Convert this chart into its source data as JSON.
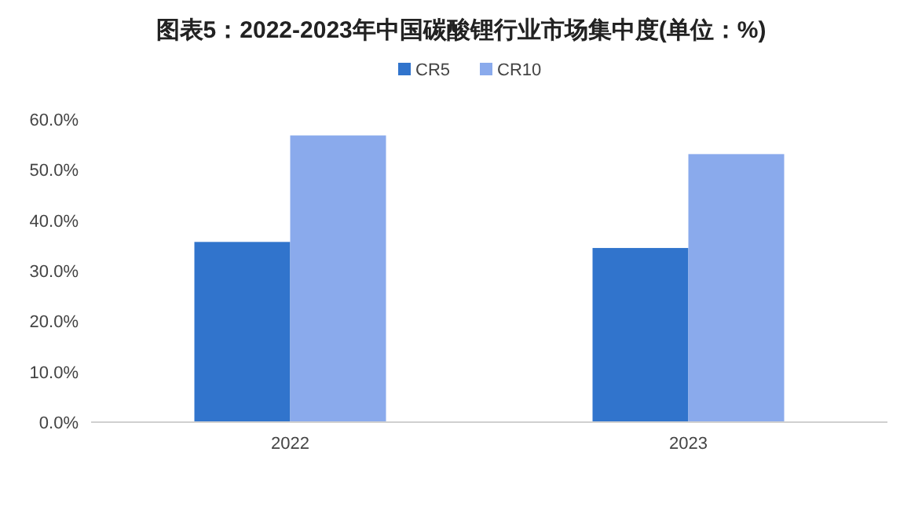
{
  "chart_data": {
    "type": "bar",
    "title": "图表5：2022-2023年中国碳酸锂行业市场集中度(单位：%)",
    "categories": [
      "2022",
      "2023"
    ],
    "series": [
      {
        "name": "CR5",
        "color": "#3174cc",
        "values": [
          35.7,
          34.5
        ]
      },
      {
        "name": "CR10",
        "color": "#8aaaec",
        "values": [
          56.8,
          53.1
        ]
      }
    ],
    "ylim": [
      0,
      60
    ],
    "yticks": [
      {
        "value": 0,
        "label": "0.0%"
      },
      {
        "value": 10,
        "label": "10.0%"
      },
      {
        "value": 20,
        "label": "20.0%"
      },
      {
        "value": 30,
        "label": "30.0%"
      },
      {
        "value": 40,
        "label": "40.0%"
      },
      {
        "value": 50,
        "label": "50.0%"
      },
      {
        "value": 60,
        "label": "60.0%"
      }
    ],
    "legend": "top",
    "grid": false
  }
}
